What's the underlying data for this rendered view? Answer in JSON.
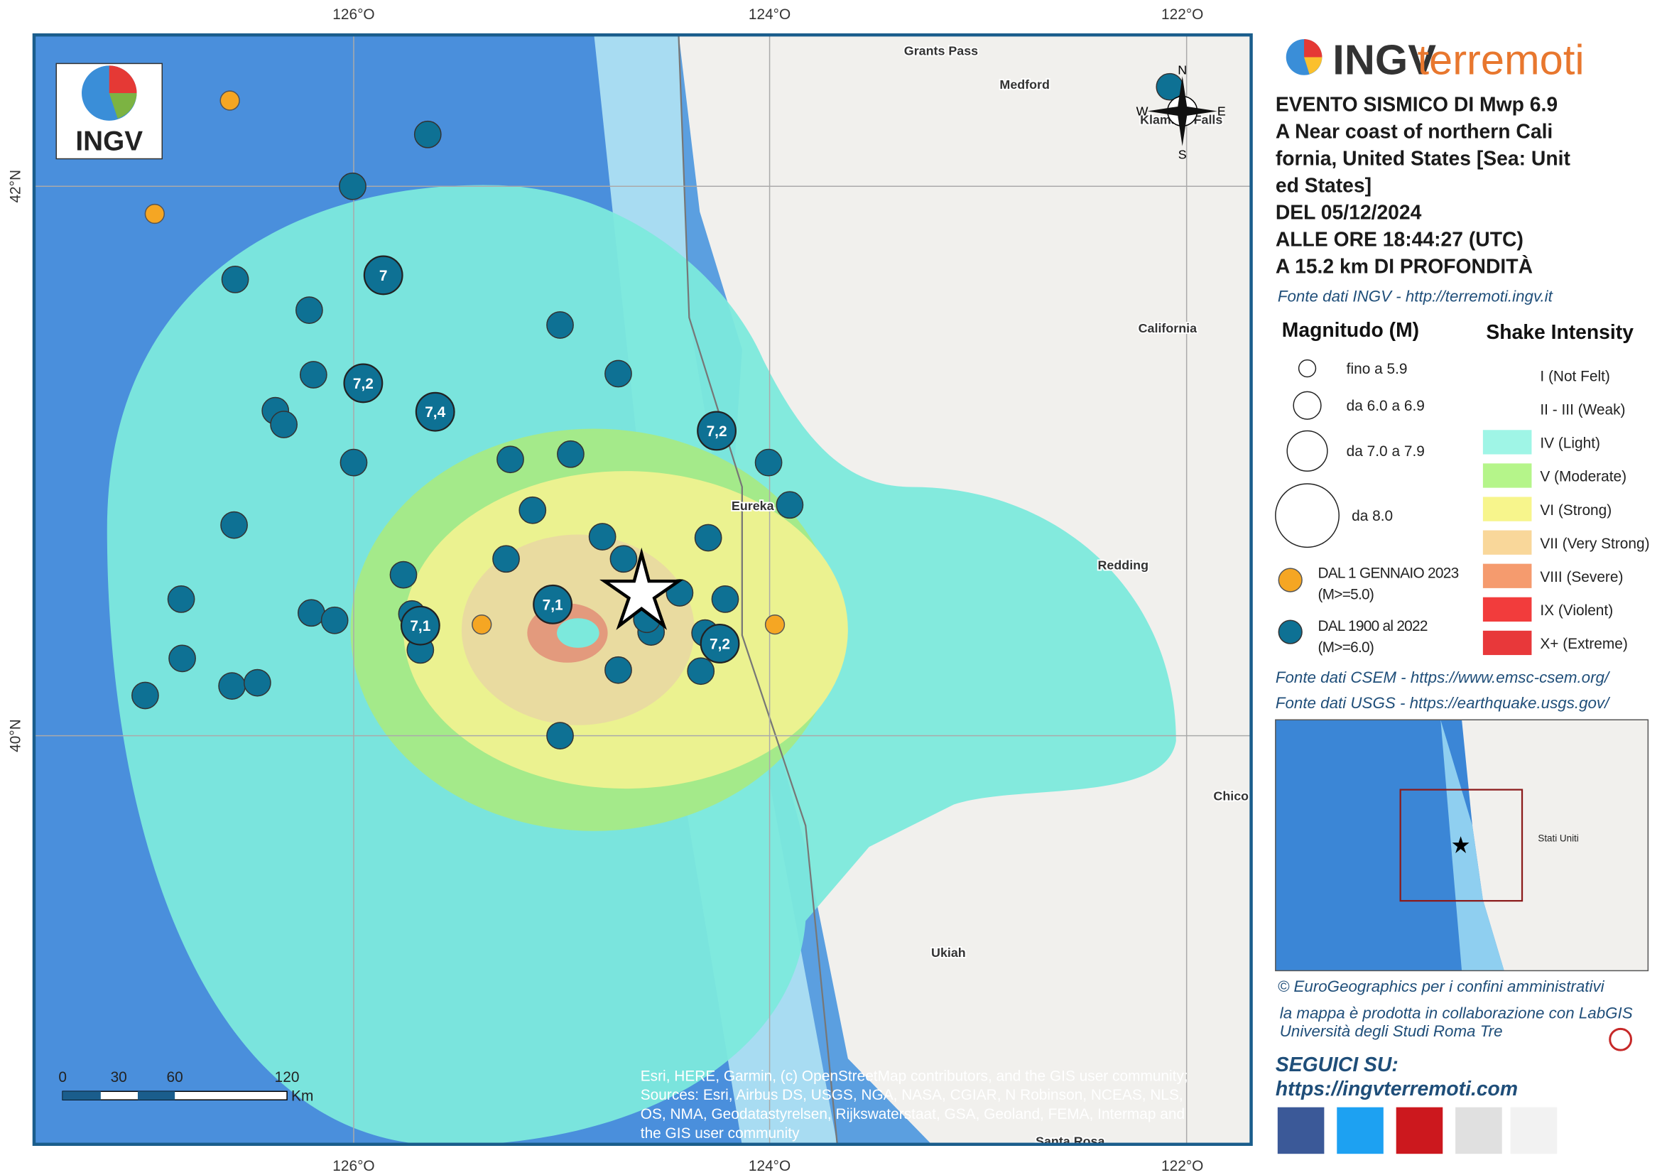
{
  "header": {
    "logo": "INGV",
    "brand_a": "INGV",
    "brand_b": "terremoti"
  },
  "event": {
    "lines": [
      "EVENTO SISMICO DI Mwp 6.9",
      "A Near coast of northern Cali",
      "fornia, United States [Sea: Unit",
      "ed States]",
      "DEL 05/12/2024",
      "ALLE ORE 18:44:27 (UTC)",
      "A 15.2 km DI PROFONDITÀ"
    ],
    "source": "Fonte dati INGV - http://terremoti.ingv.it"
  },
  "legend": {
    "magnitude_title": "Magnitudo (M)",
    "magnitude_classes": [
      "fino a 5.9",
      "da 6.0 a 6.9",
      "da 7.0 a 7.9",
      "da 8.0"
    ],
    "recent": [
      "DAL 1 GENNAIO 2023",
      "(M>=5.0)"
    ],
    "historic": [
      "DAL 1900 al 2022",
      "(M>=6.0)"
    ],
    "shake_title": "Shake Intensity",
    "shake": [
      {
        "label": "I (Not Felt)",
        "color": null
      },
      {
        "label": "II - III (Weak)",
        "color": null
      },
      {
        "label": "IV (Light)",
        "color": "#9ff5e6"
      },
      {
        "label": "V (Moderate)",
        "color": "#b5f58a"
      },
      {
        "label": "VI (Strong)",
        "color": "#f7f58c"
      },
      {
        "label": "VII (Very Strong)",
        "color": "#f9d79a"
      },
      {
        "label": "VIII (Severe)",
        "color": "#f59b6e"
      },
      {
        "label": "IX (Violent)",
        "color": "#f23c3c"
      },
      {
        "label": "X+ (Extreme)",
        "color": "#e8383a"
      }
    ]
  },
  "sources": [
    "Fonte dati CSEM - https://www.emsc-csem.org/",
    "Fonte dati USGS - https://earthquake.usgs.gov/"
  ],
  "inset": {
    "label": "Stati Uniti"
  },
  "credits": [
    "© EuroGeographics per i confini amministrativi",
    "la mappa è prodotta in collaborazione con LabGIS",
    "Università degli Studi Roma Tre"
  ],
  "follow": {
    "title": "SEGUICI SU:",
    "url": "https://ingvterremoti.com"
  },
  "map": {
    "lon_labels": [
      "126°O",
      "124°O",
      "122°O"
    ],
    "lat_labels": [
      "42°N",
      "40°N"
    ],
    "places": [
      "Grants Pass",
      "Medford",
      "Klamath Falls",
      "California",
      "Eureka",
      "Redding",
      "Chico",
      "Ukiah",
      "Santa Rosa"
    ],
    "compass": [
      "N",
      "S",
      "W",
      "E"
    ],
    "scale": {
      "labels": [
        "0",
        "30",
        "60",
        "120"
      ],
      "unit": "Km"
    },
    "attribution": [
      "Esri, HERE, Garmin, (c) OpenStreetMap contributors, and the GIS user community;",
      "Sources: Esri, Airbus DS, USGS, NGA, NASA, CGIAR, N Robinson, NCEAS, NLS,",
      "OS, NMA, Geodatastyrelsen, Rijkswaterstaat, GSA, Geoland, FEMA, Intermap and",
      "the GIS user community"
    ],
    "quake_labels": [
      "7",
      "7,2",
      "7,4",
      "7,2",
      "7,1",
      "7,1",
      "7,2"
    ]
  }
}
